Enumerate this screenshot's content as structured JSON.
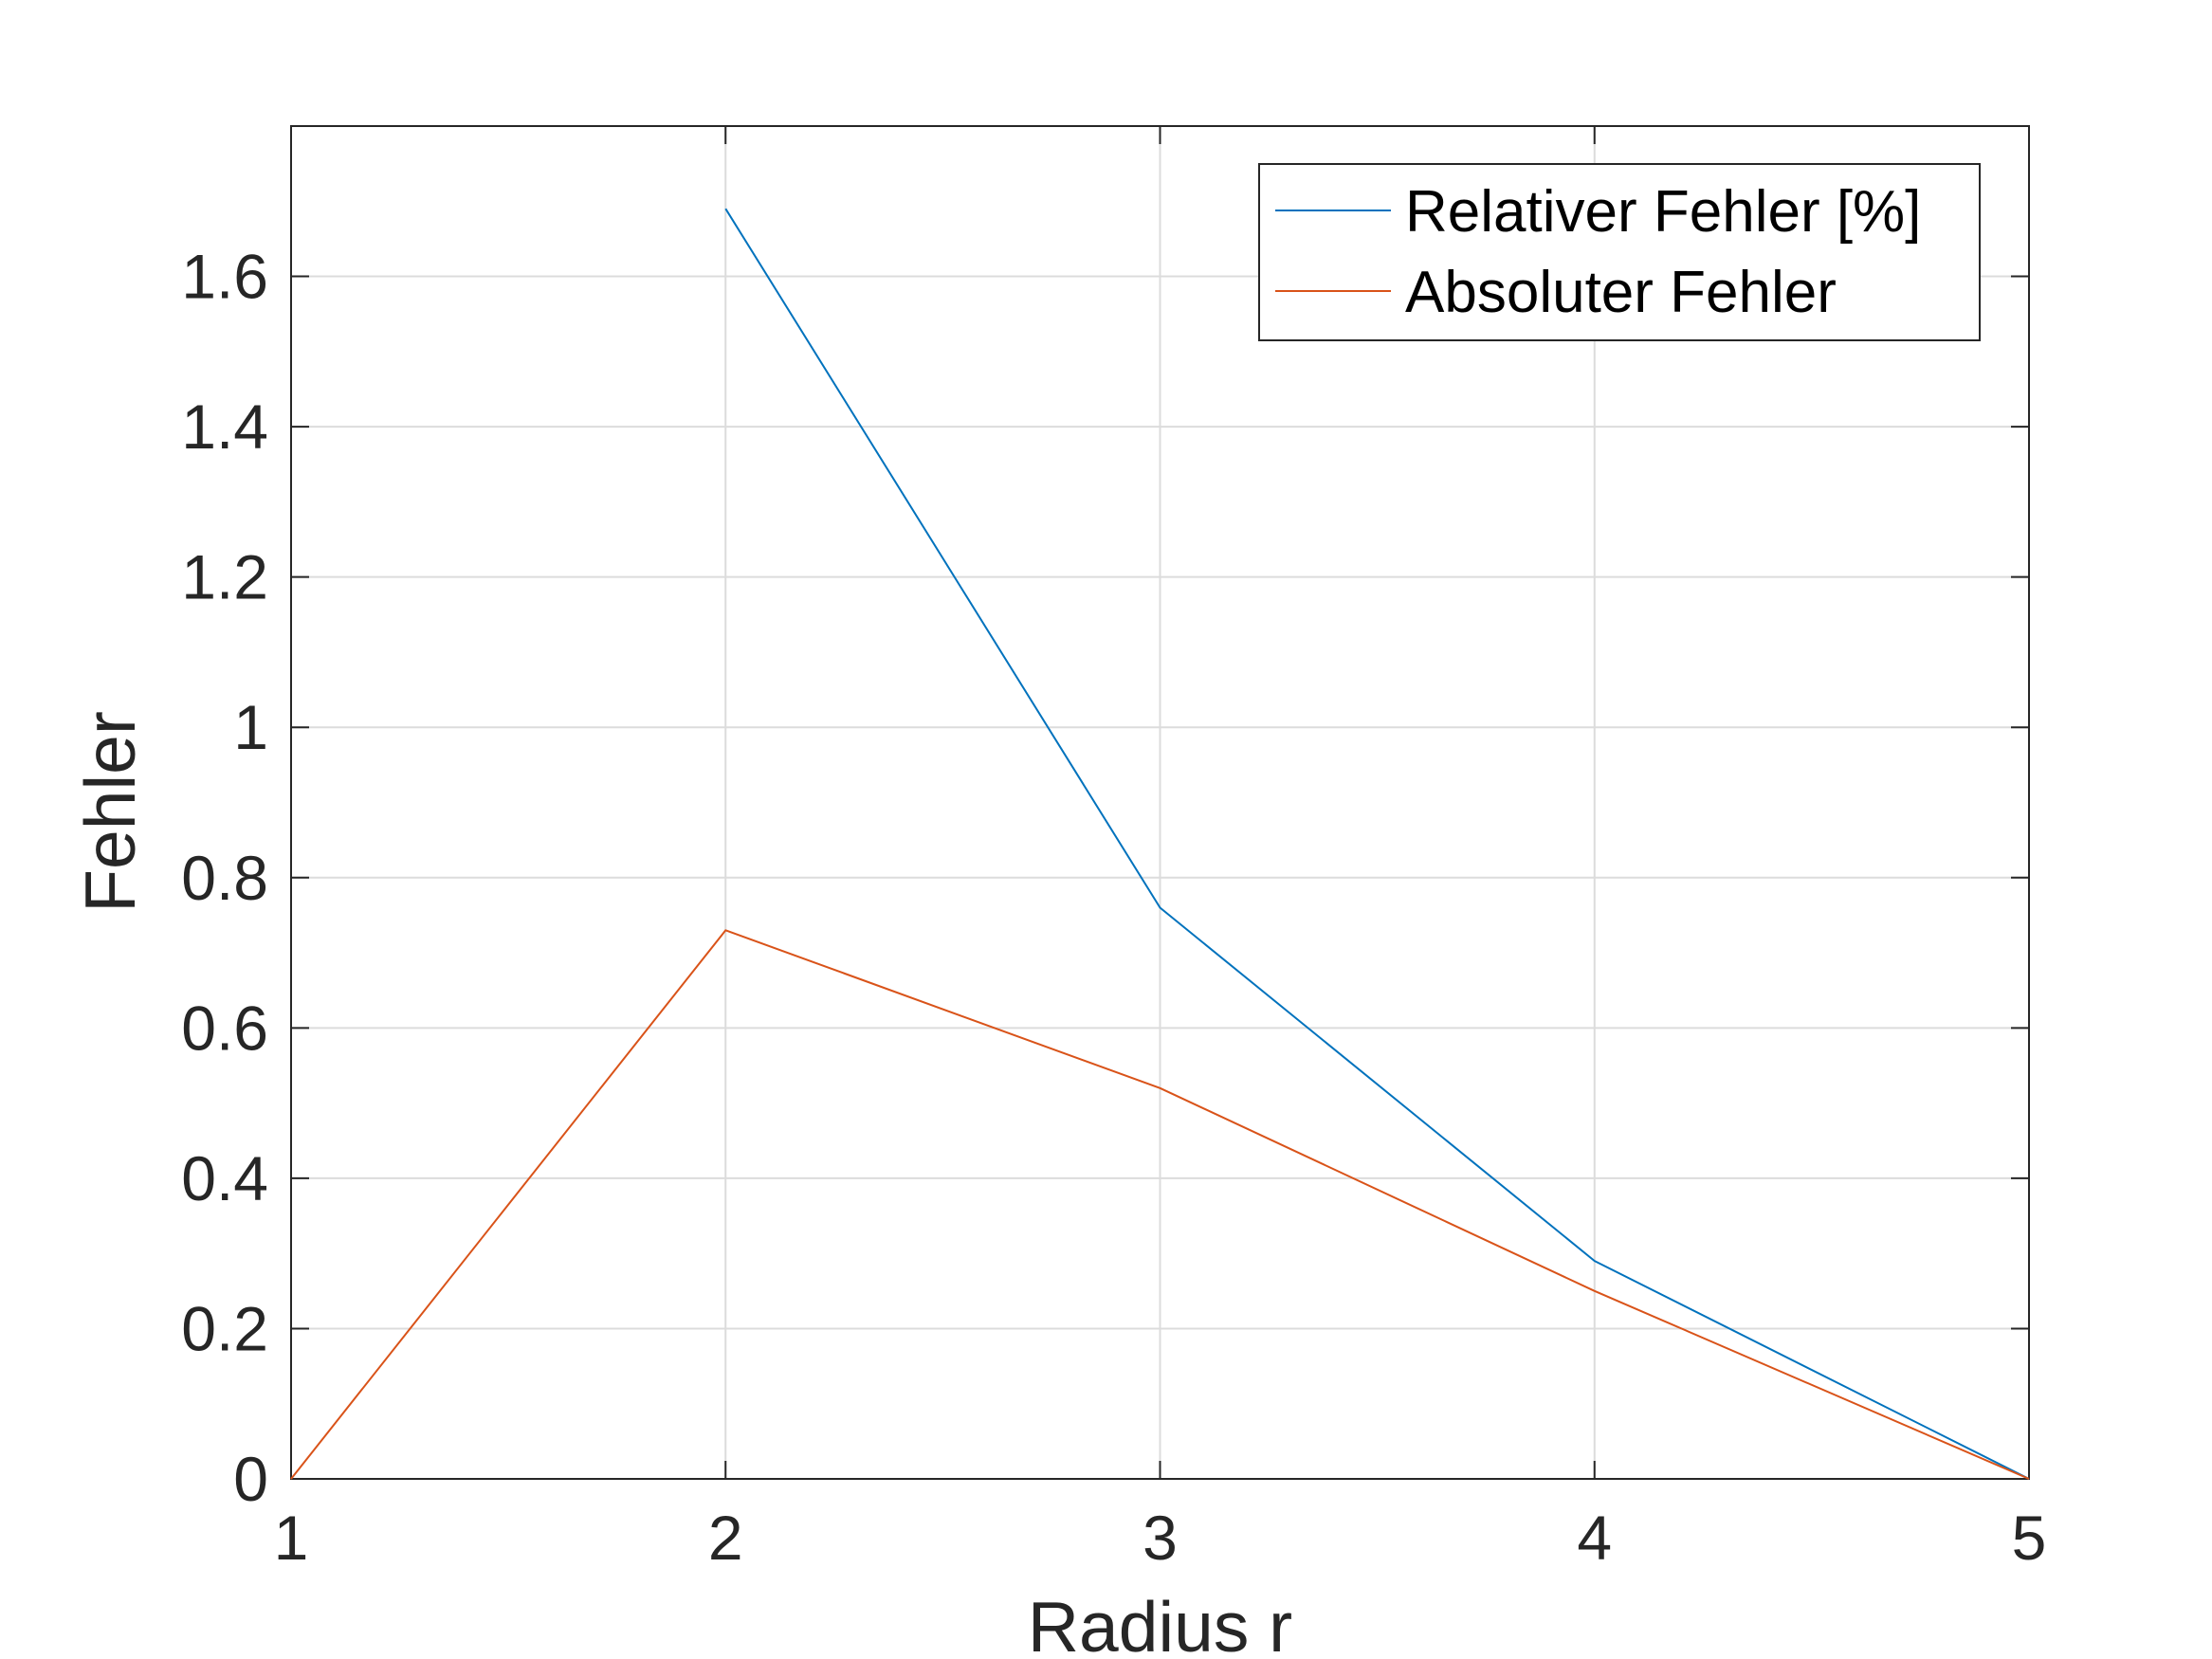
{
  "chart_data": {
    "type": "line",
    "xlabel": "Radius r",
    "ylabel": "Fehler",
    "xlim": [
      1,
      5
    ],
    "ylim": [
      0,
      1.8
    ],
    "xticks": [
      1,
      2,
      3,
      4,
      5
    ],
    "xtick_labels": [
      "1",
      "2",
      "3",
      "4",
      "5"
    ],
    "yticks": [
      0,
      0.2,
      0.4,
      0.6,
      0.8,
      1,
      1.2,
      1.4,
      1.6
    ],
    "ytick_labels": [
      "0",
      "0.2",
      "0.4",
      "0.6",
      "0.8",
      "1",
      "1.2",
      "1.4",
      "1.6"
    ],
    "grid": true,
    "legend_position": "top-right",
    "series": [
      {
        "name": "Relativer Fehler [%]",
        "color": "#0072BD",
        "x": [
          2,
          3,
          4,
          5
        ],
        "y": [
          1.69,
          0.76,
          0.29,
          0
        ]
      },
      {
        "name": "Absoluter Fehler",
        "color": "#D95319",
        "x": [
          1,
          2,
          3,
          4,
          5
        ],
        "y": [
          0,
          0.73,
          0.52,
          0.25,
          0
        ]
      }
    ]
  }
}
